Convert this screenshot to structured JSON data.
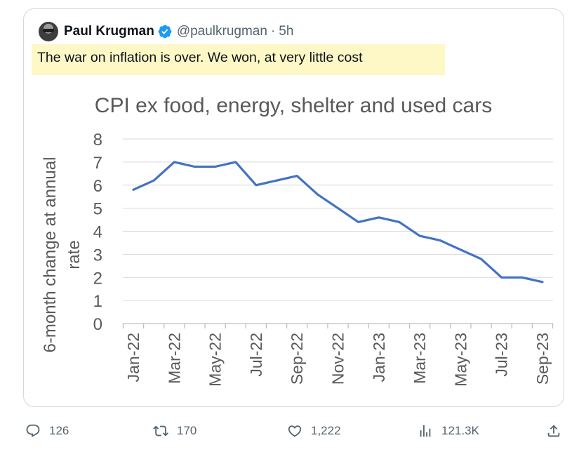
{
  "tweet": {
    "author_name": "Paul Krugman",
    "handle": "@paulkrugman",
    "separator": "·",
    "time": "5h",
    "text": "The war on inflation is over. We won, at very little cost",
    "highlight_color": "#fdf8c6",
    "verified_color": "#1d9bf0"
  },
  "actions": {
    "replies": "126",
    "reposts": "170",
    "likes": "1,222",
    "views": "121.3K",
    "icons": [
      "reply-icon",
      "repost-icon",
      "like-icon",
      "views-icon",
      "share-icon"
    ]
  },
  "chart_data": {
    "type": "line",
    "title": "CPI ex food, energy, shelter and used cars",
    "xlabel": "",
    "ylabel": "6-month change at annual rate",
    "ylabel_lines": [
      "6-month change at annual",
      "rate"
    ],
    "ylim": [
      0,
      8
    ],
    "yticks": [
      "0",
      "1",
      "2",
      "3",
      "4",
      "5",
      "6",
      "7",
      "8"
    ],
    "grid": true,
    "line_color": "#4472c4",
    "x": [
      "Jan-22",
      "Feb-22",
      "Mar-22",
      "Apr-22",
      "May-22",
      "Jun-22",
      "Jul-22",
      "Aug-22",
      "Sep-22",
      "Oct-22",
      "Nov-22",
      "Dec-22",
      "Jan-23",
      "Feb-23",
      "Mar-23",
      "Apr-23",
      "May-23",
      "Jun-23",
      "Jul-23",
      "Aug-23",
      "Sep-23"
    ],
    "xtick_labels": [
      "Jan-22",
      "Mar-22",
      "May-22",
      "Jul-22",
      "Sep-22",
      "Nov-22",
      "Jan-23",
      "Mar-23",
      "May-23",
      "Jul-23",
      "Sep-23"
    ],
    "values": [
      5.8,
      6.2,
      7.0,
      6.8,
      6.8,
      7.0,
      6.0,
      6.2,
      6.4,
      5.6,
      5.0,
      4.4,
      4.6,
      4.4,
      3.8,
      3.6,
      3.2,
      2.8,
      2.0,
      2.0,
      1.8
    ]
  }
}
